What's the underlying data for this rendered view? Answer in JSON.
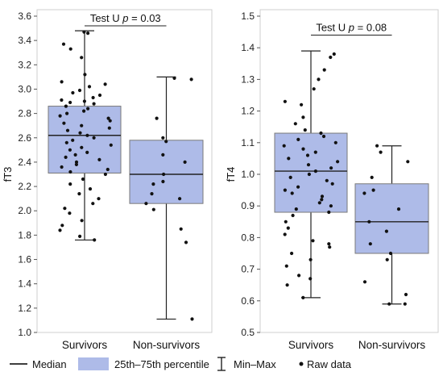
{
  "colors": {
    "box_fill": "#aebbe8",
    "box_stroke": "#7a7a7a",
    "line": "#222222",
    "point": "#111111",
    "frame": "#cfcfcf"
  },
  "chart_data": [
    {
      "type": "box",
      "ylabel": "fT3",
      "ylim": [
        1.0,
        3.6
      ],
      "yticks": [
        "1.0",
        "1.2",
        "1.4",
        "1.6",
        "1.8",
        "2.0",
        "2.2",
        "2.4",
        "2.6",
        "2.8",
        "3.0",
        "3.2",
        "3.4",
        "3.6"
      ],
      "categories": [
        "Survivors",
        "Non-survivors"
      ],
      "groups": [
        {
          "name": "Survivors",
          "min": 1.76,
          "q1": 2.31,
          "median": 2.62,
          "q3": 2.86,
          "max": 3.48,
          "points": [
            3.47,
            3.46,
            3.37,
            3.33,
            3.26,
            3.12,
            3.06,
            3.04,
            3.02,
            2.99,
            2.97,
            2.95,
            2.93,
            2.91,
            2.9,
            2.89,
            2.88,
            2.86,
            2.84,
            2.82,
            2.8,
            2.78,
            2.76,
            2.74,
            2.72,
            2.7,
            2.68,
            2.66,
            2.64,
            2.62,
            2.6,
            2.58,
            2.56,
            2.54,
            2.52,
            2.5,
            2.48,
            2.46,
            2.44,
            2.42,
            2.4,
            2.38,
            2.36,
            2.34,
            2.32,
            2.3,
            2.26,
            2.22,
            2.18,
            2.14,
            2.1,
            2.06,
            2.02,
            1.98,
            1.92,
            1.88,
            1.84,
            1.79,
            1.76
          ]
        },
        {
          "name": "Non-survivors",
          "min": 1.11,
          "q1": 2.06,
          "median": 2.3,
          "q3": 2.58,
          "max": 3.1,
          "points": [
            3.09,
            3.08,
            2.76,
            2.6,
            2.57,
            2.46,
            2.4,
            2.3,
            2.24,
            2.22,
            2.14,
            2.1,
            2.06,
            2.01,
            1.85,
            1.74,
            1.11
          ]
        }
      ],
      "annotation": {
        "text": "Test U p = 0.03",
        "y": 3.52
      }
    },
    {
      "type": "box",
      "ylabel": "fT4",
      "ylim": [
        0.5,
        1.5
      ],
      "yticks": [
        "0.5",
        "0.6",
        "0.7",
        "0.8",
        "0.9",
        "1.0",
        "1.1",
        "1.2",
        "1.3",
        "1.4",
        "1.5"
      ],
      "categories": [
        "Survivors",
        "Non-survivors"
      ],
      "groups": [
        {
          "name": "Survivors",
          "min": 0.61,
          "q1": 0.88,
          "median": 1.01,
          "q3": 1.13,
          "max": 1.39,
          "points": [
            1.38,
            1.37,
            1.33,
            1.3,
            1.27,
            1.23,
            1.22,
            1.18,
            1.16,
            1.14,
            1.13,
            1.12,
            1.11,
            1.1,
            1.09,
            1.08,
            1.07,
            1.06,
            1.05,
            1.04,
            1.03,
            1.02,
            1.01,
            1.0,
            0.99,
            0.98,
            0.97,
            0.96,
            0.95,
            0.94,
            0.93,
            0.92,
            0.91,
            0.9,
            0.89,
            0.88,
            0.87,
            0.85,
            0.83,
            0.81,
            0.79,
            0.78,
            0.77,
            0.75,
            0.73,
            0.71,
            0.68,
            0.67,
            0.65,
            0.61
          ]
        },
        {
          "name": "Non-survivors",
          "min": 0.59,
          "q1": 0.75,
          "median": 0.85,
          "q3": 0.97,
          "max": 1.09,
          "points": [
            1.09,
            1.07,
            1.04,
            0.99,
            0.95,
            0.94,
            0.89,
            0.85,
            0.82,
            0.78,
            0.75,
            0.73,
            0.66,
            0.62,
            0.59,
            0.59
          ]
        }
      ],
      "annotation": {
        "text": "Test U p = 0.08",
        "y": 1.44
      }
    }
  ],
  "legend": {
    "median": "Median",
    "iqr": "25th–75th percentile",
    "minmax": "Min–Max",
    "raw": "Raw data"
  }
}
